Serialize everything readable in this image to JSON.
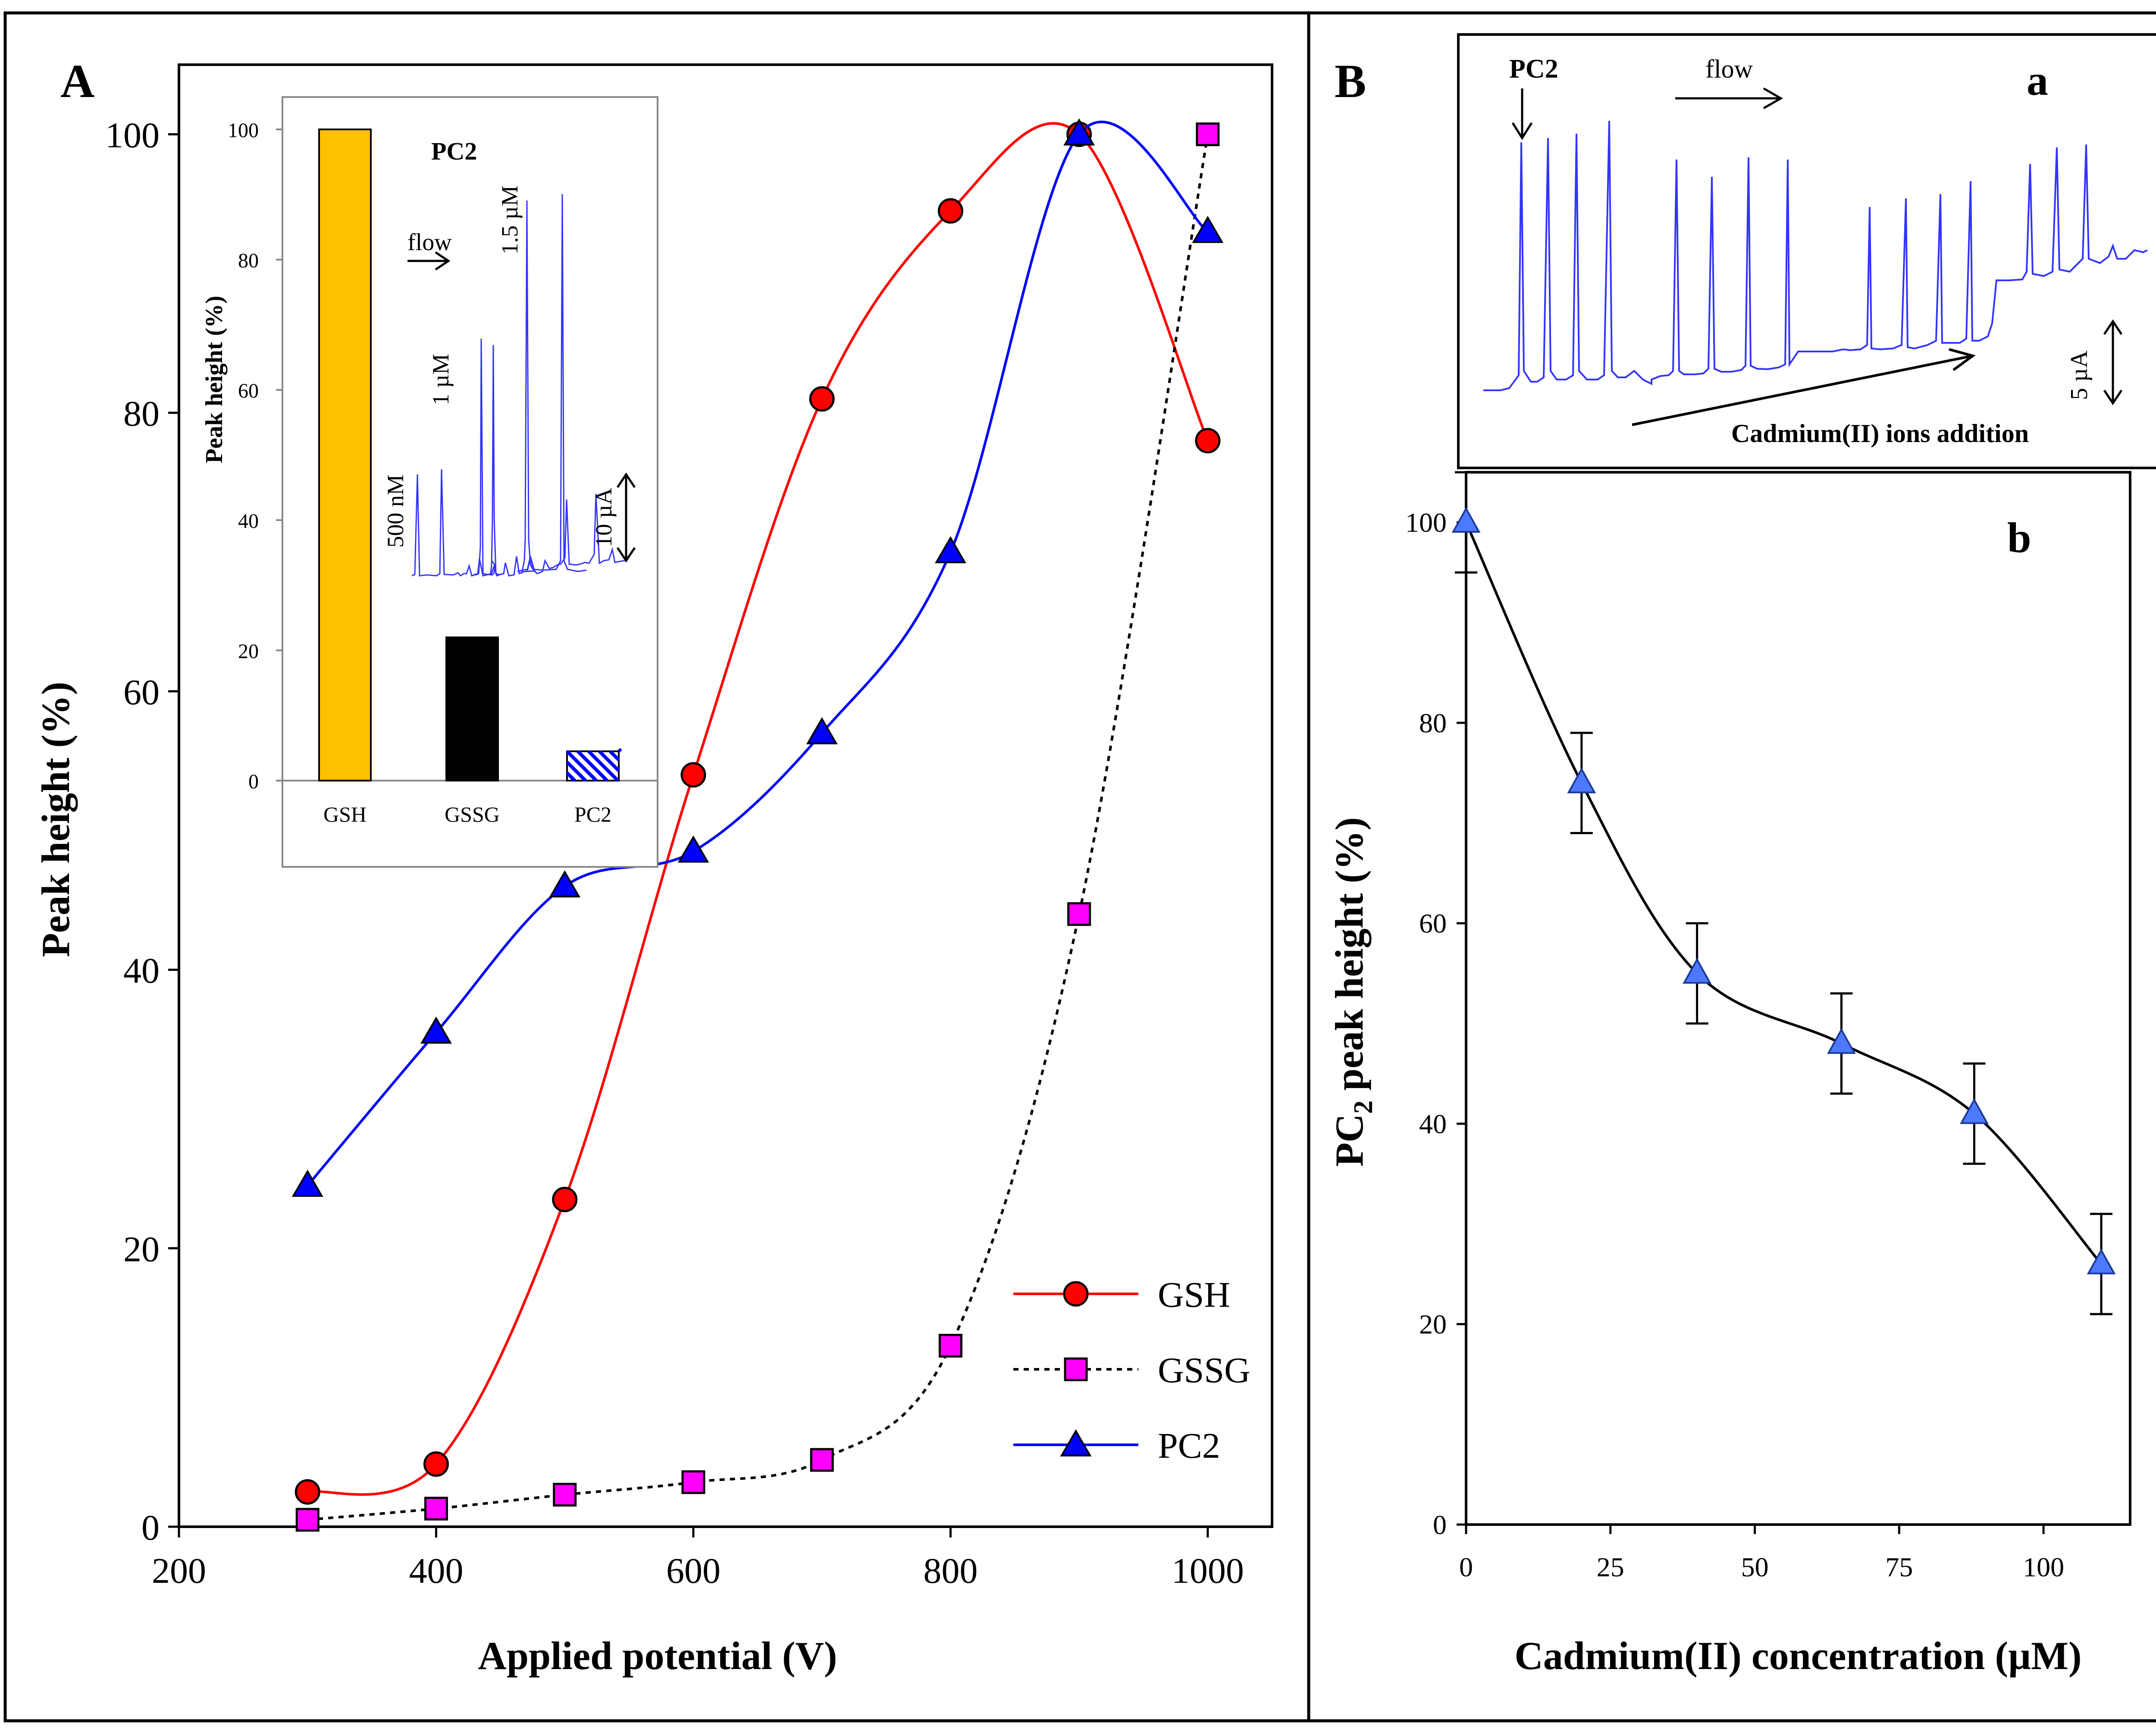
{
  "panels": {
    "A": {
      "label": "A",
      "colors": {
        "gsh": "#ff0000",
        "gssg": "#000000",
        "pc2": "#0000ff",
        "gsh_marker": "#ff0000",
        "gssg_marker": "#ff00ff",
        "pc2_marker": "#0000ff"
      },
      "legend": [
        {
          "key": "gsh",
          "label": "GSH"
        },
        {
          "key": "gssg",
          "label": "GSSG"
        },
        {
          "key": "pc2",
          "label": "PC2"
        }
      ],
      "inset": {
        "ylabel": "Peak height (%)",
        "title": "PC2",
        "flow_label": "flow",
        "conc_labels": [
          "500 nM",
          "1 µM",
          "1.5 µM"
        ],
        "scale_label": "10 µA",
        "colors": {
          "gsh": "#ffc000",
          "gssg": "#000000",
          "pc2_fill": "#ffffff",
          "pc2_hatch": "#0000ff",
          "trace": "#3333ff"
        }
      }
    },
    "B": {
      "label": "B",
      "sub_a": {
        "label": "a",
        "pc2_label": "PC2",
        "flow_label": "flow",
        "cadmium_label": "Cadmium(II) ions addition",
        "scale_label": "5 µA",
        "colors": {
          "trace": "#3333ff"
        }
      },
      "sub_b": {
        "label": "b",
        "colors": {
          "line": "#000000",
          "marker": "#4d79ff"
        }
      }
    }
  },
  "chart_data": [
    {
      "type": "line",
      "id": "A-main",
      "title": "",
      "xlabel": "Applied potential (V)",
      "ylabel": "Peak height (%)",
      "xlim": [
        200,
        1050
      ],
      "ylim": [
        0,
        105
      ],
      "xticks": [
        "200",
        "400",
        "600",
        "800",
        "1000"
      ],
      "yticks": [
        "0",
        "20",
        "40",
        "60",
        "80",
        "100"
      ],
      "series": [
        {
          "name": "GSH",
          "style": "solid",
          "marker": "circle",
          "x": [
            300,
            400,
            500,
            600,
            700,
            800,
            900,
            1000
          ],
          "values": [
            2.5,
            4.5,
            23.5,
            54,
            81,
            94.5,
            100,
            78
          ]
        },
        {
          "name": "GSSG",
          "style": "dotted",
          "marker": "square",
          "x": [
            300,
            400,
            500,
            600,
            700,
            800,
            900,
            1000
          ],
          "values": [
            0.5,
            1.3,
            2.3,
            3.2,
            4.8,
            13,
            44,
            100
          ]
        },
        {
          "name": "PC2",
          "style": "solid",
          "marker": "triangle",
          "x": [
            300,
            400,
            500,
            600,
            700,
            800,
            900,
            1000
          ],
          "values": [
            24.5,
            35.5,
            46,
            48.5,
            57,
            70,
            100,
            93
          ]
        }
      ]
    },
    {
      "type": "bar",
      "id": "A-inset",
      "title": "PC2",
      "ylabel": "Peak height (%)",
      "ylim": [
        0,
        100
      ],
      "yticks": [
        "0",
        "20",
        "40",
        "60",
        "80",
        "100"
      ],
      "categories": [
        "GSH",
        "GSSG",
        "PC2"
      ],
      "values": [
        100,
        22,
        4.5
      ]
    },
    {
      "type": "line",
      "id": "B-b",
      "title": "",
      "xlabel": "Cadmium(II) concentration (µM)",
      "ylabel": "PC2 peak height (%)",
      "xlim": [
        0,
        115
      ],
      "ylim": [
        0,
        105
      ],
      "xticks": [
        "0",
        "25",
        "50",
        "75",
        "100"
      ],
      "yticks": [
        "0",
        "20",
        "40",
        "60",
        "80",
        "100"
      ],
      "series": [
        {
          "name": "PC2",
          "x": [
            0,
            20,
            40,
            65,
            88,
            110
          ],
          "values": [
            100,
            74,
            55,
            48,
            41,
            26
          ],
          "errors": [
            5,
            5,
            5,
            5,
            5,
            5
          ]
        }
      ]
    }
  ]
}
